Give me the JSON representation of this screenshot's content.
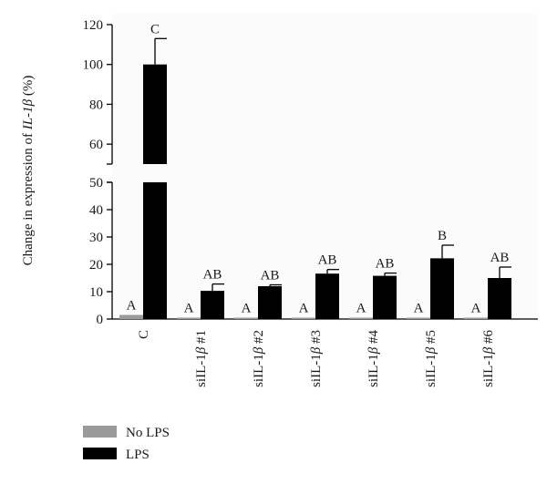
{
  "chart_data": {
    "type": "bar",
    "ylabel_prefix": "Change in expression of ",
    "ylabel_gene": "IL-1β",
    "ylabel_suffix": " (%)",
    "categories": [
      {
        "main": "C",
        "italic": "",
        "suffix": ""
      },
      {
        "main": "siIL-1",
        "italic": "β",
        "suffix": " #1"
      },
      {
        "main": "siIL-1",
        "italic": "β",
        "suffix": " #2"
      },
      {
        "main": "siIL-1",
        "italic": "β",
        "suffix": " #3"
      },
      {
        "main": "siIL-1",
        "italic": "β",
        "suffix": " #4"
      },
      {
        "main": "siIL-1",
        "italic": "β",
        "suffix": " #5"
      },
      {
        "main": "siIL-1",
        "italic": "β",
        "suffix": " #6"
      }
    ],
    "series": [
      {
        "name": "No LPS",
        "color": "#9a9a9a",
        "values": [
          1.5,
          0.5,
          0.5,
          0.5,
          0.5,
          0.5,
          0.5
        ],
        "errors": [
          0,
          0,
          0,
          0,
          0,
          0,
          0
        ],
        "labels": [
          "A",
          "A",
          "A",
          "A",
          "A",
          "A",
          "A"
        ]
      },
      {
        "name": "LPS",
        "color": "#000000",
        "values": [
          100,
          10.3,
          12.0,
          16.6,
          15.8,
          22.2,
          15.0
        ],
        "errors": [
          13,
          2.5,
          0.5,
          1.5,
          1.0,
          4.8,
          4.0
        ],
        "labels": [
          "C",
          "AB",
          "AB",
          "AB",
          "AB",
          "B",
          "AB"
        ]
      }
    ],
    "y_axis_broken": true,
    "ylim_lower": [
      0,
      50
    ],
    "ylim_upper": [
      50,
      120
    ],
    "yticks_lower": [
      0,
      10,
      20,
      30,
      40,
      50
    ],
    "yticks_upper": [
      60,
      80,
      100,
      120
    ],
    "legend_position": "bottom-left",
    "grid": false
  }
}
